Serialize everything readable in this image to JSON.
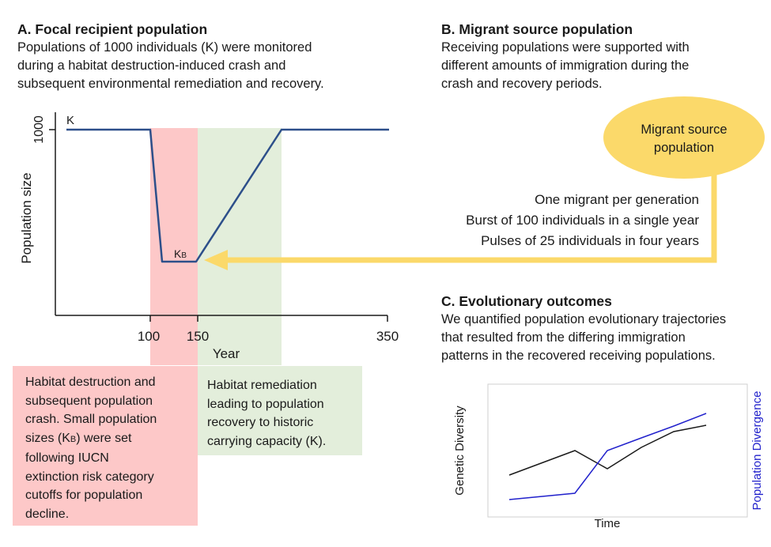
{
  "panel_a": {
    "heading": "A.  Focal recipient population",
    "description": [
      "Populations of 1000 individuals (K) were monitored",
      "during a habitat destruction-induced crash and",
      "subsequent environmental remediation and recovery."
    ],
    "chart": {
      "ylabel": "Population size",
      "xlabel": "Year",
      "y_tick": "1000",
      "x_ticks": [
        "100",
        "150",
        "350"
      ],
      "label_k": "K",
      "label_kb_main": "K",
      "label_kb_sub": "B"
    }
  },
  "panel_b": {
    "heading": "B. Migrant source population",
    "description": [
      "Receiving populations were supported with",
      "different amounts of immigration during the",
      "crash and recovery periods."
    ],
    "source_label": [
      "Migrant source",
      "population"
    ],
    "options": [
      "One migrant per generation",
      "Burst of 100 individuals in a single year",
      "Pulses of 25 individuals in four years"
    ]
  },
  "panel_c": {
    "heading": "C. Evolutionary outcomes",
    "description": [
      "We quantified population evolutionary trajectories",
      "that resulted from the differing immigration",
      "patterns in the recovered receiving populations."
    ],
    "chart": {
      "xlabel": "Time",
      "ylabel_left": "Genetic Diversity",
      "ylabel_right": "Population Divergence"
    }
  },
  "boxes": {
    "crash": [
      "Habitat destruction and",
      "subsequent population",
      "crash. Small population",
      "sizes (K",
      ") were set",
      "following IUCN",
      "extinction risk category",
      "cutoffs for population",
      "decline."
    ],
    "crash_sub": "B",
    "recovery": [
      "Habitat remediation",
      "leading to population",
      "recovery to historic",
      "carrying capacity (K)."
    ]
  },
  "colors": {
    "crash_fill": "#fdc8c8",
    "recovery_fill": "#e3eedb",
    "population_line": "#2d4f8a",
    "migrant_ellipse": "#fbd96a",
    "migrant_arrow": "#fbd96a",
    "diversity_line": "#1a1a1a",
    "divergence_line": "#2222cc"
  }
}
